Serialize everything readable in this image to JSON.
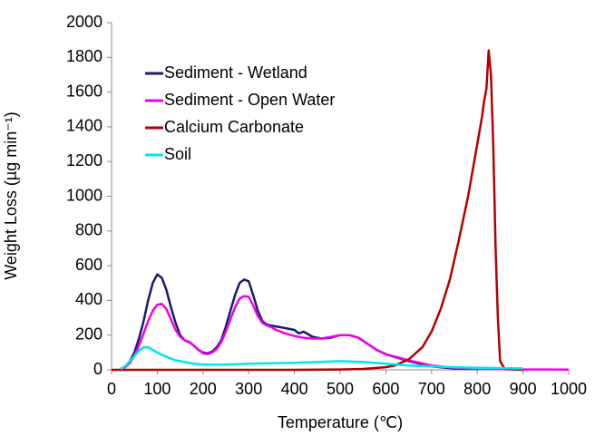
{
  "chart_data": {
    "type": "line",
    "xlabel": "Temperature (℃)",
    "ylabel": "Weight Loss (µg min⁻¹)",
    "xlim": [
      0,
      1000
    ],
    "xticks": [
      0,
      100,
      200,
      300,
      400,
      500,
      600,
      700,
      800,
      900,
      1000
    ],
    "ylim": [
      0,
      2000
    ],
    "yticks": [
      0,
      200,
      400,
      600,
      800,
      1000,
      1200,
      1400,
      1600,
      1800,
      2000
    ],
    "grid": false,
    "legend": "upper left",
    "series": [
      {
        "name": "Sediment - Wetland",
        "color": "#1a1a6e",
        "x": [
          20,
          30,
          40,
          50,
          60,
          70,
          80,
          90,
          100,
          110,
          120,
          130,
          140,
          150,
          160,
          170,
          180,
          190,
          200,
          210,
          220,
          230,
          240,
          250,
          260,
          270,
          280,
          290,
          300,
          310,
          320,
          330,
          340,
          350,
          360,
          380,
          400,
          410,
          420,
          440,
          460,
          480,
          500,
          520,
          540,
          560,
          580,
          600,
          650,
          700,
          750,
          800
        ],
        "values": [
          5,
          20,
          50,
          100,
          180,
          280,
          400,
          500,
          550,
          530,
          460,
          360,
          270,
          200,
          170,
          160,
          140,
          115,
          100,
          95,
          105,
          130,
          170,
          250,
          340,
          430,
          500,
          520,
          510,
          430,
          340,
          280,
          260,
          255,
          250,
          240,
          230,
          210,
          220,
          190,
          180,
          185,
          200,
          200,
          185,
          150,
          115,
          90,
          50,
          20,
          8,
          5
        ]
      },
      {
        "name": "Sediment - Open Water",
        "color": "#ee00ee",
        "x": [
          20,
          30,
          40,
          50,
          60,
          70,
          80,
          90,
          100,
          110,
          120,
          130,
          140,
          150,
          160,
          170,
          180,
          190,
          200,
          210,
          220,
          230,
          240,
          250,
          260,
          270,
          280,
          290,
          300,
          310,
          320,
          330,
          340,
          350,
          360,
          380,
          400,
          420,
          440,
          460,
          480,
          500,
          520,
          540,
          560,
          580,
          600,
          650,
          700,
          750,
          800,
          850,
          900,
          950,
          1000
        ],
        "values": [
          5,
          15,
          40,
          80,
          140,
          210,
          280,
          340,
          375,
          380,
          350,
          290,
          230,
          190,
          170,
          160,
          140,
          115,
          95,
          90,
          100,
          120,
          160,
          220,
          290,
          360,
          410,
          425,
          420,
          370,
          310,
          270,
          255,
          245,
          230,
          210,
          195,
          185,
          180,
          180,
          190,
          200,
          200,
          185,
          150,
          115,
          90,
          55,
          25,
          12,
          6,
          4,
          2,
          2,
          1
        ]
      },
      {
        "name": "Calcium Carbonate",
        "color": "#b30000",
        "x": [
          0,
          100,
          200,
          300,
          400,
          500,
          550,
          600,
          620,
          650,
          680,
          700,
          720,
          740,
          760,
          780,
          800,
          810,
          815,
          820,
          825,
          830,
          835,
          840,
          845,
          850,
          860,
          900
        ],
        "values": [
          0,
          0,
          0,
          0,
          0,
          2,
          5,
          15,
          25,
          60,
          130,
          220,
          350,
          520,
          750,
          1000,
          1300,
          1450,
          1550,
          1620,
          1840,
          1700,
          1300,
          700,
          300,
          50,
          5,
          0
        ]
      },
      {
        "name": "Soil",
        "color": "#00e5ee",
        "x": [
          20,
          30,
          40,
          50,
          60,
          70,
          80,
          90,
          100,
          120,
          140,
          160,
          180,
          200,
          250,
          300,
          350,
          400,
          450,
          500,
          550,
          600,
          650,
          700,
          750,
          800,
          850,
          900
        ],
        "values": [
          5,
          20,
          50,
          80,
          110,
          130,
          130,
          115,
          100,
          75,
          55,
          45,
          35,
          30,
          30,
          35,
          38,
          40,
          45,
          50,
          45,
          35,
          25,
          20,
          15,
          12,
          10,
          8
        ]
      }
    ]
  }
}
